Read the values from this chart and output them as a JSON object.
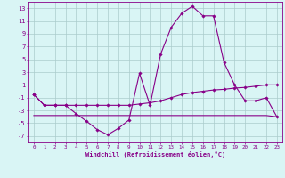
{
  "x": [
    0,
    1,
    2,
    3,
    4,
    5,
    6,
    7,
    8,
    9,
    10,
    11,
    12,
    13,
    14,
    15,
    16,
    17,
    18,
    19,
    20,
    21,
    22,
    23
  ],
  "windchill": [
    -0.5,
    -2.2,
    -2.2,
    -2.2,
    -3.5,
    -4.7,
    -6.0,
    -6.8,
    -5.8,
    -4.5,
    2.8,
    -2.2,
    5.8,
    10.0,
    12.2,
    13.3,
    11.8,
    11.8,
    4.5,
    1.0,
    -1.5,
    -1.5,
    -1.0,
    -4.0
  ],
  "upper_trend": [
    -0.5,
    -2.2,
    -2.2,
    -2.2,
    -2.2,
    -2.2,
    -2.2,
    -2.2,
    -2.2,
    -2.2,
    -2.0,
    -1.8,
    -1.5,
    -1.0,
    -0.5,
    -0.2,
    0.0,
    0.2,
    0.3,
    0.5,
    0.6,
    0.8,
    1.0,
    1.0
  ],
  "lower_trend": [
    -3.8,
    -3.8,
    -3.8,
    -3.8,
    -3.8,
    -3.8,
    -3.8,
    -3.8,
    -3.8,
    -3.8,
    -3.8,
    -3.8,
    -3.8,
    -3.8,
    -3.8,
    -3.8,
    -3.8,
    -3.8,
    -3.8,
    -3.8,
    -3.8,
    -3.8,
    -3.8,
    -4.0
  ],
  "line_color": "#880088",
  "background_color": "#d9f5f5",
  "grid_color": "#aacccc",
  "xlabel": "Windchill (Refroidissement éolien,°C)",
  "ylabel_ticks": [
    -7,
    -5,
    -3,
    -1,
    1,
    3,
    5,
    7,
    9,
    11,
    13
  ],
  "ylim": [
    -8,
    14
  ],
  "xlim_min": -0.5,
  "xlim_max": 23.5,
  "xticks": [
    0,
    1,
    2,
    3,
    4,
    5,
    6,
    7,
    8,
    9,
    10,
    11,
    12,
    13,
    14,
    15,
    16,
    17,
    18,
    19,
    20,
    21,
    22,
    23
  ]
}
